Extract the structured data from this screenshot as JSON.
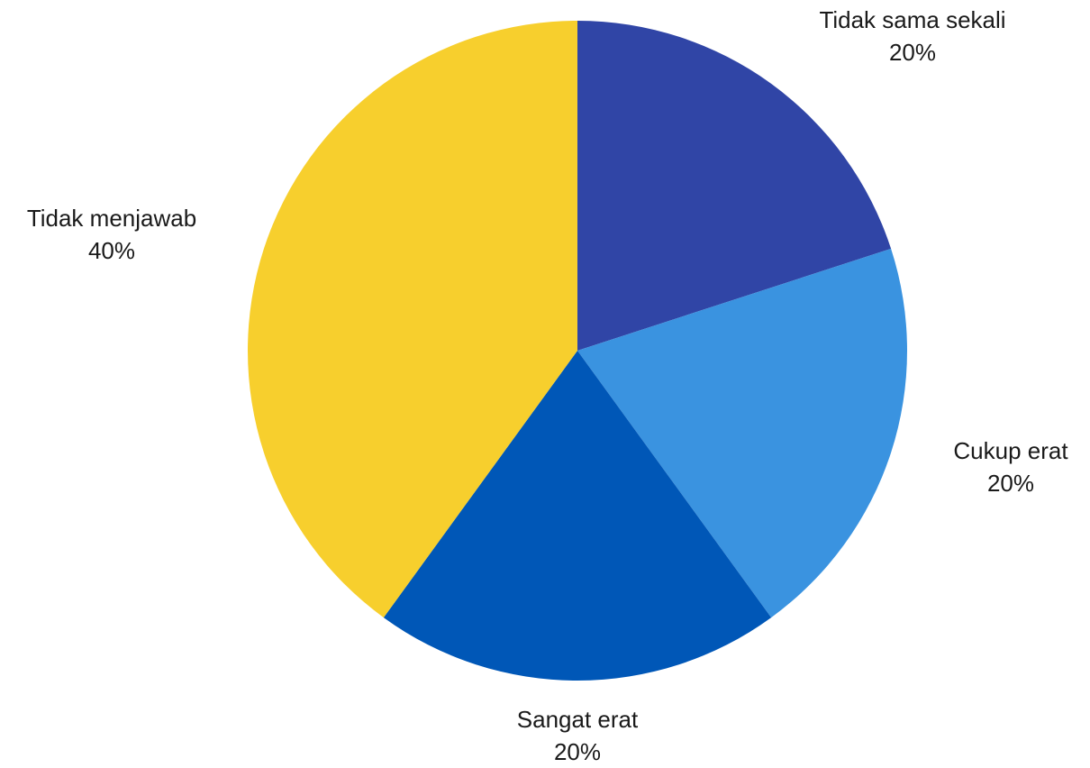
{
  "chart_data": {
    "type": "pie",
    "start_angle_deg": 0,
    "direction": "clockwise",
    "slices": [
      {
        "label": "Tidak sama sekali",
        "value": 20,
        "value_label": "20%",
        "color": "#3045a6"
      },
      {
        "label": "Cukup erat",
        "value": 20,
        "value_label": "20%",
        "color": "#3a93e0"
      },
      {
        "label": "Sangat erat",
        "value": 20,
        "value_label": "20%",
        "color": "#0057b7"
      },
      {
        "label": "Tidak menjawab",
        "value": 40,
        "value_label": "40%",
        "color": "#f7cf2d"
      }
    ]
  }
}
